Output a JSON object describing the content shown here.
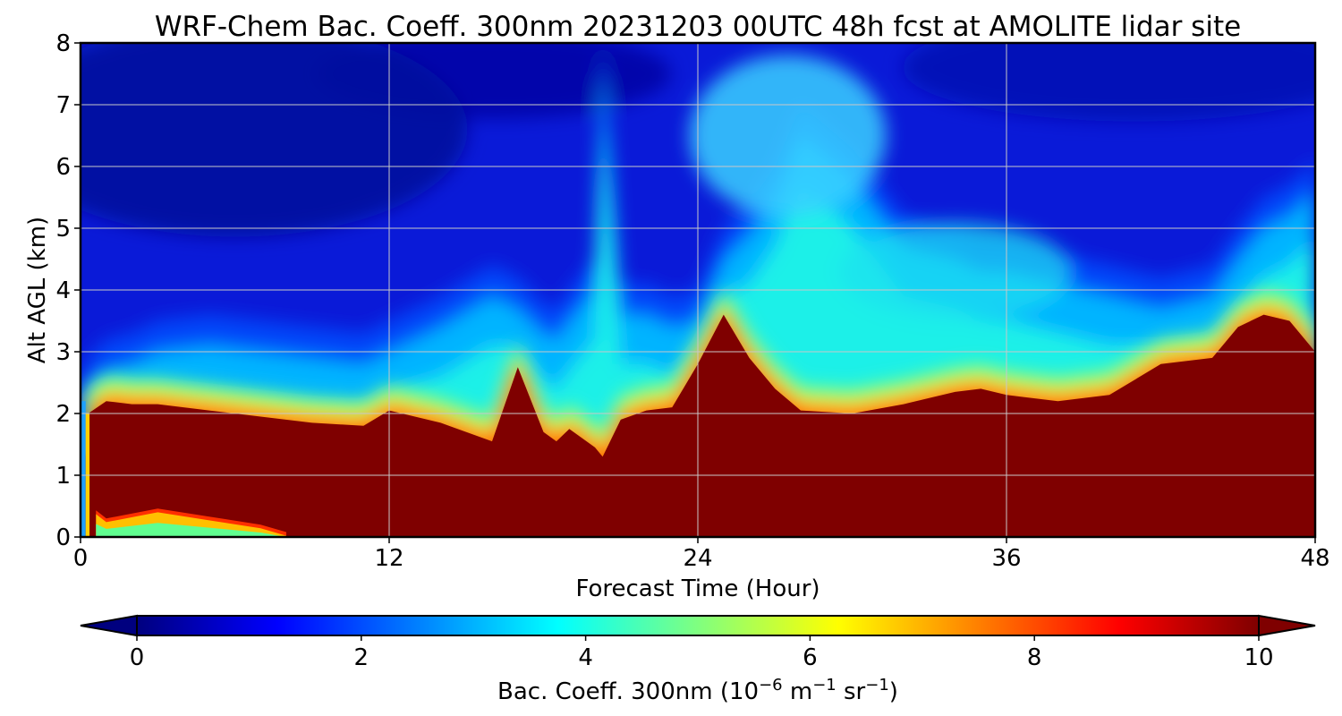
{
  "chart_data": {
    "type": "heatmap",
    "title": "WRF-Chem Bac. Coeff. 300nm  20231203 00UTC 48h fcst at AMOLITE lidar site",
    "xlabel": "Forecast Time (Hour)",
    "ylabel": "Alt AGL (km)",
    "xlim": [
      0,
      48
    ],
    "ylim": [
      0,
      8
    ],
    "x_ticks": [
      0,
      12,
      24,
      36,
      48
    ],
    "y_ticks": [
      0,
      1,
      2,
      3,
      4,
      5,
      6,
      7,
      8
    ],
    "grid": true,
    "colormap": "jet",
    "colorbar": {
      "orientation": "horizontal",
      "extend": "both",
      "range": [
        0,
        10
      ],
      "ticks": [
        0,
        2,
        4,
        6,
        8,
        10
      ],
      "label_text": "Bac. Coeff. 300nm  (10",
      "label_exp1": "−6",
      "label_unit1": " m",
      "label_exp2": "−1",
      "label_unit2": " sr",
      "label_exp3": "−1",
      "label_close": ")"
    },
    "x": [
      0,
      0.3,
      1,
      2,
      3,
      5,
      7,
      9,
      11,
      12,
      14,
      16,
      17,
      18,
      18.5,
      19,
      20,
      20.3,
      21,
      22,
      23,
      24,
      25,
      26,
      27,
      28,
      30,
      32,
      34,
      35,
      36,
      38,
      40,
      42,
      44,
      45,
      46,
      47,
      48
    ],
    "layer_top_km": [
      0,
      2.0,
      2.2,
      2.15,
      2.15,
      2.05,
      1.95,
      1.85,
      1.8,
      2.05,
      1.85,
      1.55,
      2.75,
      1.7,
      1.55,
      1.75,
      1.45,
      1.3,
      1.9,
      2.05,
      2.1,
      2.8,
      3.6,
      2.9,
      2.4,
      2.05,
      2.0,
      2.15,
      2.35,
      2.4,
      2.3,
      2.2,
      2.3,
      2.8,
      2.9,
      3.4,
      3.6,
      3.5,
      3.0
    ],
    "aerosol_top_km": [
      2.1,
      2.4,
      2.7,
      2.8,
      3.0,
      3.1,
      3.0,
      2.9,
      2.8,
      3.0,
      3.4,
      3.9,
      3.7,
      3.3,
      3.2,
      3.5,
      4.0,
      7.5,
      3.6,
      3.6,
      3.4,
      3.5,
      4.5,
      4.9,
      5.5,
      6.5,
      5.8,
      4.7,
      4.5,
      4.3,
      4.3,
      4.1,
      3.9,
      3.7,
      3.9,
      4.5,
      5.0,
      5.2,
      5.6
    ],
    "surface_clean_layer": {
      "x": [
        0.6,
        1,
        3,
        5,
        7,
        8
      ],
      "top_km": [
        0.35,
        0.22,
        0.38,
        0.25,
        0.12,
        0.0
      ]
    }
  }
}
